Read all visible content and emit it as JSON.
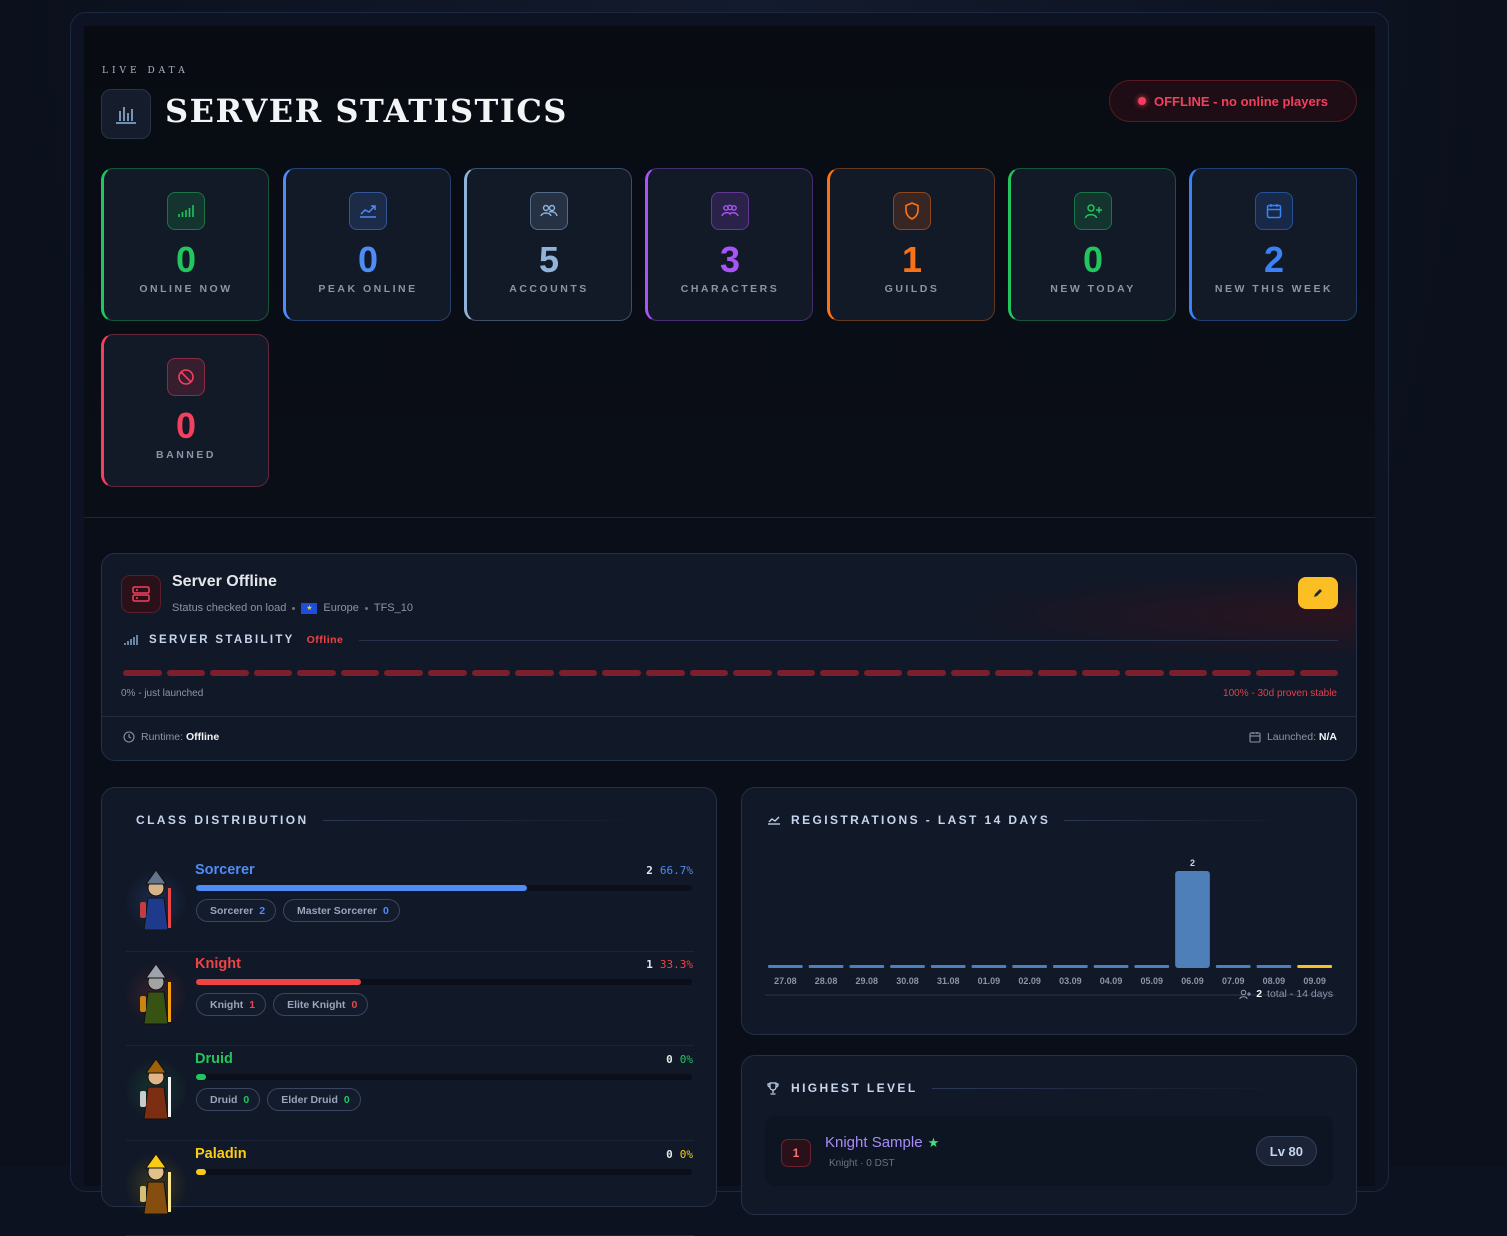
{
  "header": {
    "eyebrow": "LIVE DATA",
    "title": "SERVER STATISTICS",
    "status_pill": "OFFLINE - no online players"
  },
  "stats": [
    {
      "value": "0",
      "label": "ONLINE NOW",
      "icon": "signal-icon",
      "color": "#22c55e"
    },
    {
      "value": "0",
      "label": "PEAK ONLINE",
      "icon": "trending-up-icon",
      "color": "#4f8cf6"
    },
    {
      "value": "5",
      "label": "ACCOUNTS",
      "icon": "users-icon",
      "color": "#8fb3d9"
    },
    {
      "value": "3",
      "label": "CHARACTERS",
      "icon": "group-icon",
      "color": "#a855f7"
    },
    {
      "value": "1",
      "label": "GUILDS",
      "icon": "shield-icon",
      "color": "#f97316"
    },
    {
      "value": "0",
      "label": "NEW TODAY",
      "icon": "user-plus-icon",
      "color": "#22c55e"
    },
    {
      "value": "2",
      "label": "NEW THIS WEEK",
      "icon": "calendar-icon",
      "color": "#3b82f6"
    },
    {
      "value": "0",
      "label": "BANNED",
      "icon": "ban-icon",
      "color": "#f43f5e"
    }
  ],
  "server": {
    "title": "Server Offline",
    "meta_check": "Status checked on load",
    "meta_region": "Europe",
    "meta_engine": "TFS_10",
    "stability_label": "SERVER STABILITY",
    "stability_state": "Offline",
    "scale_low": "0% - just launched",
    "scale_high": "100% - 30d proven stable",
    "runtime_label": "Runtime:",
    "runtime_value": "Offline",
    "launched_label": "Launched:",
    "launched_value": "N/A"
  },
  "class_distribution": {
    "title": "CLASS DISTRIBUTION",
    "classes": [
      {
        "name": "Sorcerer",
        "count": "2",
        "pct": "66.7%",
        "fraction": 0.667,
        "color": "#4f8cf6",
        "subs": [
          {
            "label": "Sorcerer",
            "n": "2"
          },
          {
            "label": "Master Sorcerer",
            "n": "0"
          }
        ]
      },
      {
        "name": "Knight",
        "count": "1",
        "pct": "33.3%",
        "fraction": 0.333,
        "color": "#ef4444",
        "subs": [
          {
            "label": "Knight",
            "n": "1"
          },
          {
            "label": "Elite Knight",
            "n": "0"
          }
        ]
      },
      {
        "name": "Druid",
        "count": "0",
        "pct": "0%",
        "fraction": 0,
        "color": "#22c55e",
        "subs": [
          {
            "label": "Druid",
            "n": "0"
          },
          {
            "label": "Elder Druid",
            "n": "0"
          }
        ]
      },
      {
        "name": "Paladin",
        "count": "0",
        "pct": "0%",
        "fraction": 0,
        "color": "#facc15",
        "subs": []
      }
    ]
  },
  "registrations": {
    "title": "REGISTRATIONS - LAST 14 DAYS",
    "total_value": "2",
    "total_label": "total - 14 days",
    "chart_data": {
      "type": "bar",
      "title": "REGISTRATIONS - LAST 14 DAYS",
      "categories": [
        "27.08",
        "28.08",
        "29.08",
        "30.08",
        "31.08",
        "01.09",
        "02.09",
        "03.09",
        "04.09",
        "05.09",
        "06.09",
        "07.09",
        "08.09",
        "09.09"
      ],
      "values": [
        0,
        0,
        0,
        0,
        0,
        0,
        0,
        0,
        0,
        0,
        2,
        0,
        0,
        0
      ],
      "data_labels": [
        "",
        "",
        "",
        "",
        "",
        "",
        "",
        "",
        "",
        "",
        "2",
        "",
        "",
        ""
      ],
      "highlight_last_color": "#fbbf24",
      "bar_color": "#4f7fb8",
      "ylim": [
        0,
        2
      ]
    }
  },
  "highest_level": {
    "title": "HIGHEST LEVEL",
    "entries": [
      {
        "rank": "1",
        "name": "Knight Sample",
        "sub": "Knight · 0 DST",
        "level": "Lv 80"
      }
    ]
  }
}
